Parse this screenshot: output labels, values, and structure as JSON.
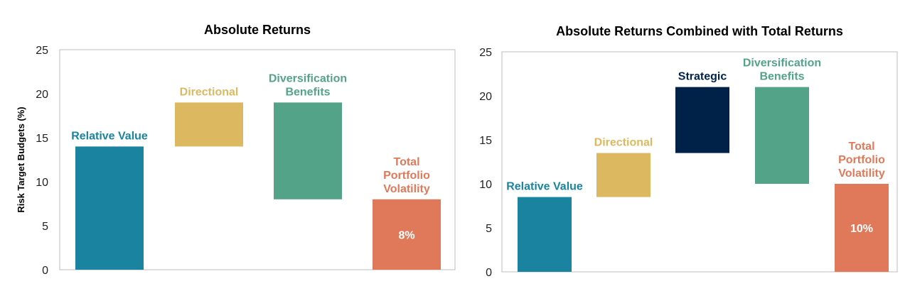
{
  "colors": {
    "relative_value": "#1a84a0",
    "directional": "#dcb961",
    "strategic": "#012248",
    "diversification": "#53a388",
    "total": "#e0795a"
  },
  "chart_data": [
    {
      "type": "bar",
      "subtype": "waterfall",
      "title": "Absolute Returns",
      "ylabel": "Risk Target Budgets (%)",
      "ylim": [
        0,
        25
      ],
      "yticks": [
        0,
        5,
        10,
        15,
        20,
        25
      ],
      "grid": false,
      "bars": [
        {
          "label": [
            "Relative Value"
          ],
          "bottom": 0,
          "top": 14,
          "color": "#1a84a0",
          "value_label": ""
        },
        {
          "label": [
            "Directional"
          ],
          "bottom": 14,
          "top": 19,
          "color": "#dcb961",
          "value_label": ""
        },
        {
          "label": [
            "Diversification",
            "Benefits"
          ],
          "bottom": 8,
          "top": 19,
          "color": "#53a388",
          "value_label": ""
        },
        {
          "label": [
            "Total",
            "Portfolio",
            "Volatility"
          ],
          "bottom": 0,
          "top": 8,
          "color": "#e0795a",
          "value_label": "8%"
        }
      ]
    },
    {
      "type": "bar",
      "subtype": "waterfall",
      "title": "Absolute Returns Combined with Total Returns",
      "ylabel": "",
      "ylim": [
        0,
        25
      ],
      "yticks": [
        0,
        5,
        10,
        15,
        20,
        25
      ],
      "grid": false,
      "bars": [
        {
          "label": [
            "Relative Value"
          ],
          "bottom": 0,
          "top": 8.5,
          "color": "#1a84a0",
          "value_label": ""
        },
        {
          "label": [
            "Directional"
          ],
          "bottom": 8.5,
          "top": 13.5,
          "color": "#dcb961",
          "value_label": ""
        },
        {
          "label": [
            "Strategic"
          ],
          "bottom": 13.5,
          "top": 21,
          "color": "#012248",
          "value_label": ""
        },
        {
          "label": [
            "Diversification",
            "Benefits"
          ],
          "bottom": 10,
          "top": 21,
          "color": "#53a388",
          "value_label": ""
        },
        {
          "label": [
            "Total",
            "Portfolio",
            "Volatility"
          ],
          "bottom": 0,
          "top": 10,
          "color": "#e0795a",
          "value_label": "10%"
        }
      ]
    }
  ]
}
